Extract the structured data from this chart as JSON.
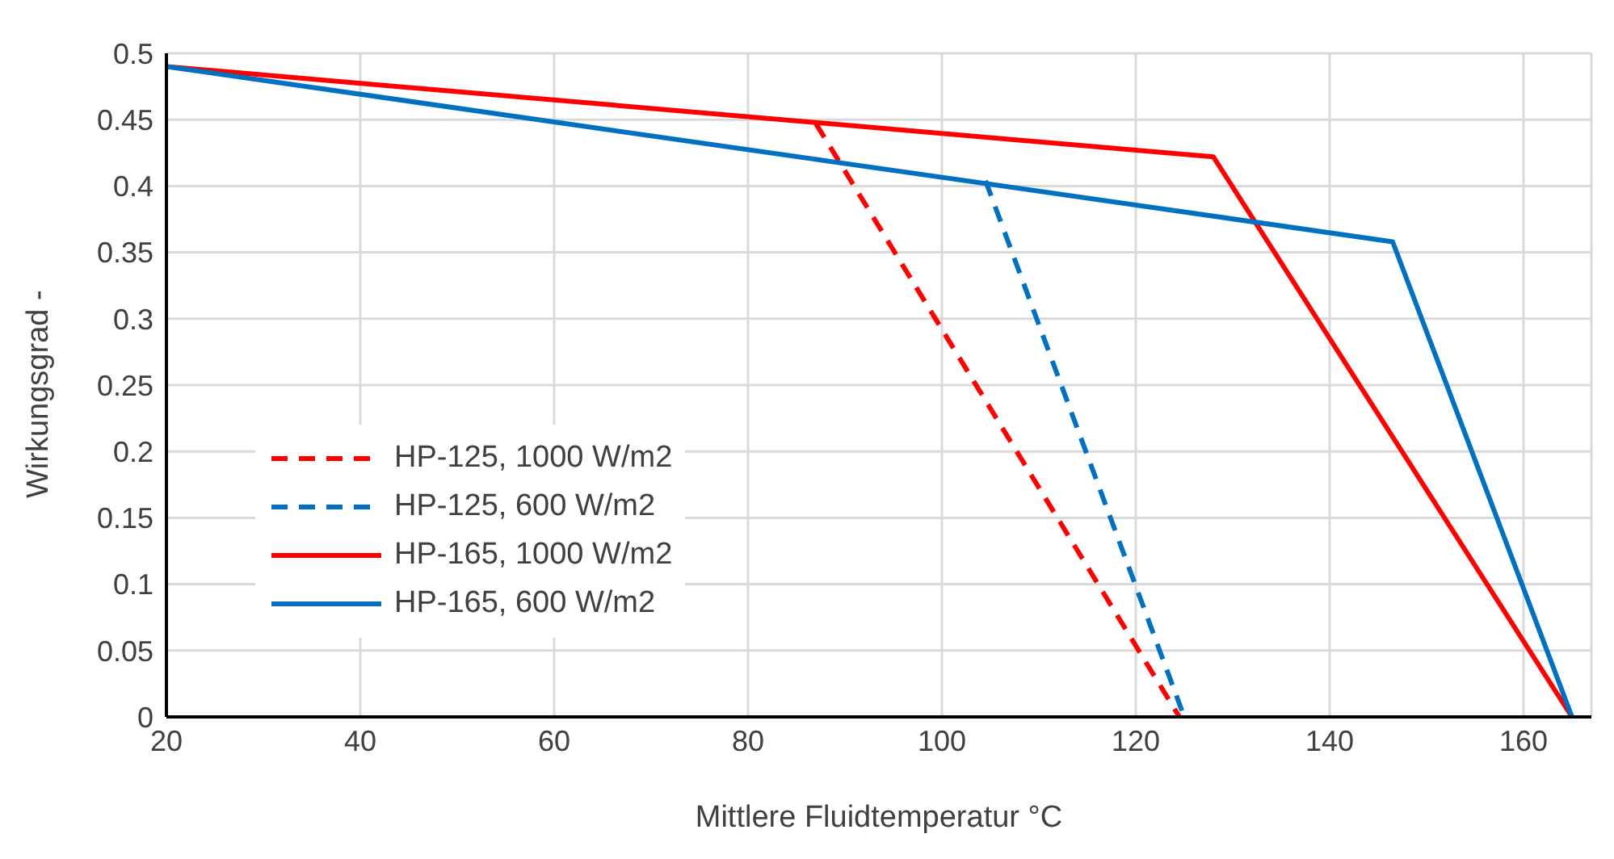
{
  "chart_data": {
    "type": "line",
    "xlabel": "Mittlere Fluidtemperatur  °C",
    "ylabel": "Wirkungsgrad -",
    "xlim": [
      20,
      167
    ],
    "xticks": [
      20,
      40,
      60,
      80,
      100,
      120,
      140,
      160
    ],
    "ylim": [
      0,
      0.5
    ],
    "yticks": [
      0,
      0.05,
      0.1,
      0.15,
      0.2,
      0.25,
      0.3,
      0.35,
      0.4,
      0.45,
      0.5
    ],
    "grid": true,
    "legend": "bottom left",
    "marker": "none",
    "series": [
      {
        "name": "HP-125, 1000 W/m2",
        "color": "#ff0000",
        "line_style": "dashed",
        "x": [
          87,
          124.5
        ],
        "values": [
          0.447,
          0
        ]
      },
      {
        "name": "HP-125, 600 W/m2",
        "color": "#0070c0",
        "line_style": "dashed",
        "x": [
          104.5,
          125
        ],
        "values": [
          0.404,
          0
        ]
      },
      {
        "name": "HP-165, 1000 W/m2",
        "color": "#ff0000",
        "line_style": "solid",
        "x": [
          20,
          128,
          165
        ],
        "values": [
          0.49,
          0.422,
          0
        ]
      },
      {
        "name": "HP-165, 600 W/m2",
        "color": "#0070c0",
        "line_style": "solid",
        "x": [
          20,
          146.5,
          165
        ],
        "values": [
          0.49,
          0.358,
          0
        ]
      }
    ]
  }
}
